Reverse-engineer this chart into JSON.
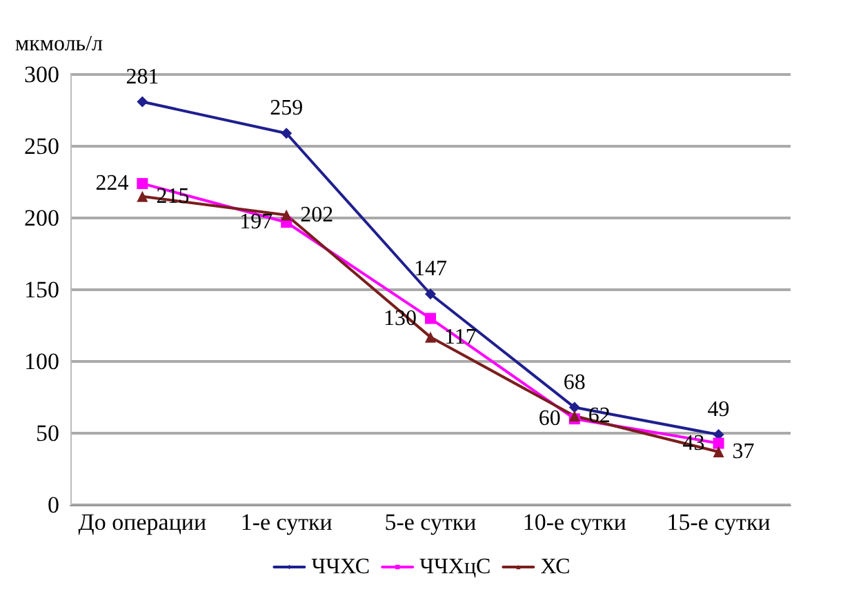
{
  "chart_data": {
    "type": "line",
    "ylabel": "мкмоль/л",
    "categories": [
      "До операции",
      "1-е сутки",
      "5-е сутки",
      "10-е сутки",
      "15-е сутки"
    ],
    "series": [
      {
        "name": "ЧЧХС",
        "color": "#1f1f8f",
        "marker": "diamond",
        "values": [
          281,
          259,
          147,
          68,
          49
        ]
      },
      {
        "name": "ЧЧХцС",
        "color": "#ff00ff",
        "marker": "square",
        "values": [
          224,
          197,
          130,
          60,
          43
        ]
      },
      {
        "name": "ХС",
        "color": "#7b1e1e",
        "marker": "triangle",
        "values": [
          215,
          202,
          117,
          62,
          37
        ]
      }
    ],
    "ylim": [
      0,
      300
    ],
    "yticks": [
      0,
      50,
      100,
      150,
      200,
      250,
      300
    ],
    "grid": "y",
    "legend": "bottom",
    "data_labels": true
  }
}
